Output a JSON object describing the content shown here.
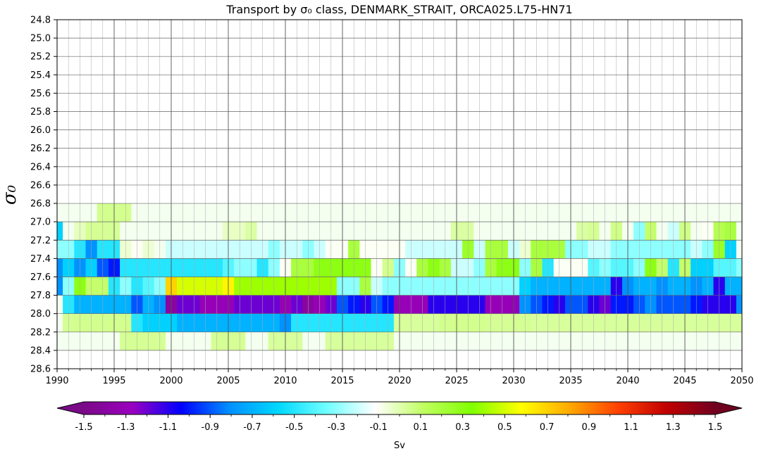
{
  "chart_data": {
    "type": "heatmap",
    "title": "Transport by σ₀ class, DENMARK_STRAIT, ORCA025.L75-HN71",
    "xlabel": "",
    "ylabel": "σ₀",
    "xlim": [
      1990,
      2050
    ],
    "ylim": [
      28.6,
      24.8
    ],
    "y_inverted": true,
    "x_ticks": [
      "1990",
      "1995",
      "2000",
      "2005",
      "2010",
      "2015",
      "2020",
      "2025",
      "2030",
      "2035",
      "2040",
      "2045",
      "2050"
    ],
    "y_ticks": [
      "24.8",
      "25.0",
      "25.2",
      "25.4",
      "25.6",
      "25.8",
      "26.0",
      "26.2",
      "26.4",
      "26.6",
      "26.8",
      "27.0",
      "27.2",
      "27.4",
      "27.6",
      "27.8",
      "28.0",
      "28.2",
      "28.4",
      "28.6"
    ],
    "grid": true,
    "cell_width_years": 1,
    "cell_height_sigma": 0.2,
    "colorbar": {
      "label": "Sv",
      "range": [
        -1.5,
        1.5
      ],
      "ticks": [
        "-1.5",
        "-1.3",
        "-1.1",
        "-0.9",
        "-0.7",
        "-0.5",
        "-0.3",
        "-0.1",
        "0.1",
        "0.3",
        "0.5",
        "0.7",
        "0.9",
        "1.1",
        "1.3",
        "1.5"
      ],
      "extend": "both",
      "stops": [
        "#7a0a86",
        "#9a00c0",
        "#0000ff",
        "#0090ff",
        "#00d8ff",
        "#70ffff",
        "#ffffff",
        "#c0ff60",
        "#80ff00",
        "#ffff00",
        "#ffaa00",
        "#ff4000",
        "#c00000",
        "#700020"
      ]
    },
    "rows": [
      {
        "sigma": 27.0,
        "start_year": 1990,
        "values": [
          -0.6,
          0,
          -0.02,
          0.04,
          0.04,
          0.04,
          0,
          0,
          0,
          0,
          0,
          0,
          0,
          0,
          0,
          -0.03,
          -0.03,
          0.02,
          0,
          0,
          0,
          0,
          0,
          0,
          0,
          0,
          0,
          0,
          0,
          0,
          0,
          0,
          0,
          0,
          0,
          0.02,
          0.02,
          0,
          0,
          0,
          0,
          0,
          0,
          0,
          0,
          0,
          0.02,
          0.04,
          0,
          0.06,
          0,
          -0.3,
          0.1,
          0,
          -0.2,
          0.06,
          0,
          -0.1,
          0.15,
          0.2,
          0
        ]
      },
      {
        "sigma": 27.2,
        "start_year": 1990,
        "values": [
          -0.3,
          -0.3,
          -0.5,
          -0.8,
          -0.5,
          -0.5,
          -0.05,
          -0.1,
          -0.05,
          0,
          -0.2,
          -0.2,
          -0.2,
          -0.2,
          -0.2,
          -0.2,
          -0.2,
          -0.2,
          -0.2,
          -0.3,
          -0.2,
          -0.2,
          -0.3,
          -0.2,
          -0.1,
          -0.1,
          0.2,
          -0.1,
          -0.1,
          -0.1,
          -0.1,
          -0.2,
          -0.2,
          -0.2,
          -0.2,
          -0.2,
          0.25,
          -0.2,
          0.2,
          0.2,
          -0.2,
          -0.05,
          0.2,
          0.2,
          0.2,
          -0.3,
          -0.3,
          -0.2,
          -0.2,
          -0.3,
          -0.3,
          -0.3,
          -0.3,
          -0.3,
          -0.3,
          -0.3,
          -0.2,
          -0.3,
          0.25,
          -0.6,
          0
        ]
      },
      {
        "sigma": 27.4,
        "start_year": 1990,
        "values": [
          -0.8,
          -0.6,
          -0.8,
          -0.6,
          -0.9,
          -1.0,
          -0.5,
          -0.5,
          -0.5,
          -0.5,
          -0.5,
          -0.5,
          -0.5,
          -0.5,
          -0.5,
          -0.4,
          -0.3,
          -0.3,
          -0.5,
          -0.3,
          -0.1,
          0.2,
          0.2,
          0.3,
          0.3,
          0.3,
          0.3,
          0.3,
          -0.1,
          0.05,
          -0.3,
          -0.1,
          0.2,
          0.3,
          0.2,
          -0.2,
          -0.2,
          -0.3,
          0.2,
          0.3,
          0.3,
          -0.3,
          0.2,
          -0.5,
          -0.1,
          -0.1,
          -0.1,
          -0.4,
          -0.3,
          -0.4,
          -0.4,
          -0.3,
          0.3,
          0.1,
          -0.5,
          0.1,
          -0.6,
          -0.6,
          -0.4,
          -0.4,
          -0.3
        ]
      },
      {
        "sigma": 27.6,
        "start_year": 1990,
        "values": [
          -0.8,
          -0.3,
          0.3,
          0.1,
          0.1,
          -0.5,
          -0.3,
          -0.5,
          -0.4,
          -0.3,
          0.7,
          0.5,
          0.5,
          0.5,
          0.5,
          0.6,
          0.4,
          0.4,
          0.4,
          0.4,
          0.4,
          0.4,
          0.4,
          0.4,
          0.4,
          -0.3,
          -0.3,
          0.2,
          -0.2,
          -0.3,
          -0.3,
          -0.3,
          -0.3,
          -0.3,
          -0.3,
          -0.3,
          -0.3,
          -0.3,
          -0.3,
          -0.3,
          -0.3,
          -0.6,
          -0.7,
          -0.7,
          -0.7,
          -0.7,
          -0.7,
          -0.7,
          -0.7,
          -1.1,
          -0.8,
          -0.7,
          -0.7,
          -0.8,
          -0.7,
          -0.7,
          -0.8,
          -0.7,
          -1.1,
          -0.7,
          -0.7
        ]
      },
      {
        "sigma": 27.8,
        "start_year": 1990,
        "values": [
          0,
          -0.5,
          -0.7,
          -0.7,
          -0.7,
          -0.7,
          -0.7,
          -0.9,
          -0.7,
          -0.8,
          -1.4,
          -1.2,
          -1.2,
          -1.3,
          -1.3,
          -1.3,
          -1.2,
          -1.2,
          -1.2,
          -1.2,
          -1.3,
          -1.2,
          -1.4,
          -1.3,
          -1.2,
          -0.9,
          -1.0,
          -1.1,
          -0.9,
          -1.0,
          -1.3,
          -1.3,
          -1.3,
          -1.1,
          -1.1,
          -1.1,
          -1.1,
          -1.1,
          -1.3,
          -1.3,
          -1.3,
          -0.8,
          -0.9,
          -1.0,
          -1.1,
          -0.9,
          -0.9,
          -1.1,
          -1.2,
          -1.0,
          -1.0,
          -0.9,
          -0.8,
          -0.9,
          -0.9,
          -0.9,
          -1.0,
          -1.1,
          -1.1,
          -1.1,
          -0.8
        ]
      },
      {
        "sigma": 28.0,
        "start_year": 1990,
        "values": [
          0,
          0.04,
          0.05,
          0.05,
          0.05,
          0.05,
          0.05,
          -0.5,
          -0.6,
          -0.6,
          -0.6,
          -0.7,
          -0.7,
          -0.7,
          -0.7,
          -0.7,
          -0.7,
          -0.7,
          -0.7,
          -0.7,
          -0.8,
          -0.5,
          -0.5,
          -0.5,
          -0.5,
          -0.5,
          -0.5,
          -0.5,
          -0.5,
          -0.5,
          0.03,
          0.03,
          0.03,
          0.03,
          0.05,
          0.05,
          0.05,
          0.05,
          0.04,
          0.04,
          0.04,
          0.04,
          0.03,
          0.03,
          0.03,
          0.03,
          0.03,
          0.03,
          0.03,
          0.03,
          0.03,
          0.03,
          0.03,
          0.03,
          0.03,
          0.03,
          0.03,
          0.03,
          0.03,
          0.03,
          0.03
        ]
      },
      {
        "sigma": 28.2,
        "start_year": 1990,
        "values": [
          0,
          0,
          0,
          0,
          0,
          0,
          0.04,
          0.04,
          0.04,
          0.04,
          0,
          0,
          0,
          0,
          0.04,
          0.04,
          0.04,
          0,
          0,
          0.03,
          0.03,
          0.03,
          0,
          0,
          0.03,
          0.03,
          0.03,
          0.03,
          0.03,
          0.03,
          0,
          0,
          0,
          0,
          0,
          0,
          0,
          0,
          0,
          0,
          0,
          0,
          0,
          0,
          0,
          0,
          0,
          0,
          0,
          0,
          0,
          0,
          0,
          0,
          0,
          0,
          0,
          0,
          0,
          0,
          0
        ]
      },
      {
        "sigma": 26.8,
        "start_year": 1990,
        "values": [
          0,
          0,
          0,
          0,
          0.05,
          0.05,
          0.05,
          0,
          0,
          0,
          0,
          0,
          0,
          0,
          0,
          0,
          0,
          0,
          0,
          0,
          0,
          0,
          0,
          0,
          0,
          0,
          0,
          0,
          0,
          0,
          0,
          0,
          0,
          0,
          0,
          0,
          0,
          0,
          0,
          0,
          0,
          0,
          0,
          0,
          0,
          0,
          0,
          0,
          0,
          0,
          0,
          0,
          0,
          0,
          0,
          0,
          0,
          0,
          0,
          0,
          0
        ]
      }
    ]
  }
}
